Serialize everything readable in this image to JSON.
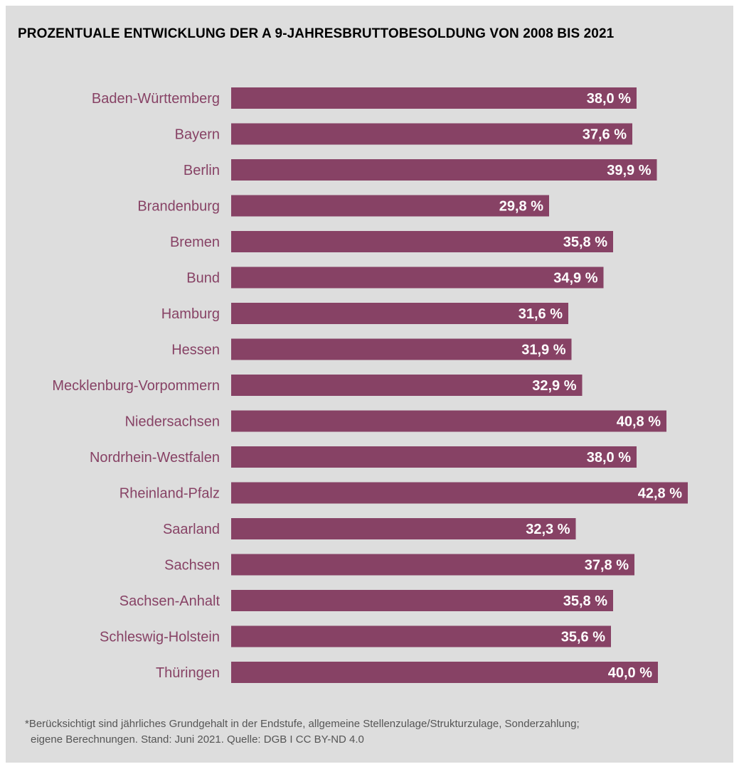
{
  "title": "PROZENTUALE ENTWICKLUNG DER A 9-JAHRESBRUTTOBESOLDUNG VON 2008 BIS 2021",
  "colors": {
    "background": "#dddddd",
    "bar": "#874265",
    "category_label": "#874265",
    "value_label": "#ffffff"
  },
  "chart_data": {
    "type": "bar",
    "orientation": "horizontal",
    "title": "PROZENTUALE ENTWICKLUNG DER A 9-JAHRESBRUTTOBESOLDUNG VON 2008 BIS 2021",
    "xlabel": "",
    "ylabel": "",
    "xlim": [
      0,
      42.8
    ],
    "grid": false,
    "unit": "%",
    "categories": [
      "Baden-Württemberg",
      "Bayern",
      "Berlin",
      "Brandenburg",
      "Bremen",
      "Bund",
      "Hamburg",
      "Hessen",
      "Mecklenburg-Vorpommern",
      "Niedersachsen",
      "Nordrhein-Westfalen",
      "Rheinland-Pfalz",
      "Saarland",
      "Sachsen",
      "Sachsen-Anhalt",
      "Schleswig-Holstein",
      "Thüringen"
    ],
    "values": [
      38.0,
      37.6,
      39.9,
      29.8,
      35.8,
      34.9,
      31.6,
      31.9,
      32.9,
      40.8,
      38.0,
      42.8,
      32.3,
      37.8,
      35.8,
      35.6,
      40.0
    ],
    "value_labels": [
      "38,0 %",
      "37,6 %",
      "39,9 %",
      "29,8 %",
      "35,8 %",
      "34,9 %",
      "31,6 %",
      "31,9 %",
      "32,9 %",
      "40,8 %",
      "38,0 %",
      "42,8 %",
      "32,3 %",
      "37,8 %",
      "35,8 %",
      "35,6 %",
      "40,0 %"
    ]
  },
  "footnote": {
    "line1": "*Berücksichtigt sind jährliches Grundgehalt in der Endstufe, allgemeine Stellenzulage/Strukturzulage, Sonderzahlung;",
    "line2": "eigene Berechnungen. Stand: Juni 2021. Quelle: DGB I CC BY-ND 4.0"
  }
}
